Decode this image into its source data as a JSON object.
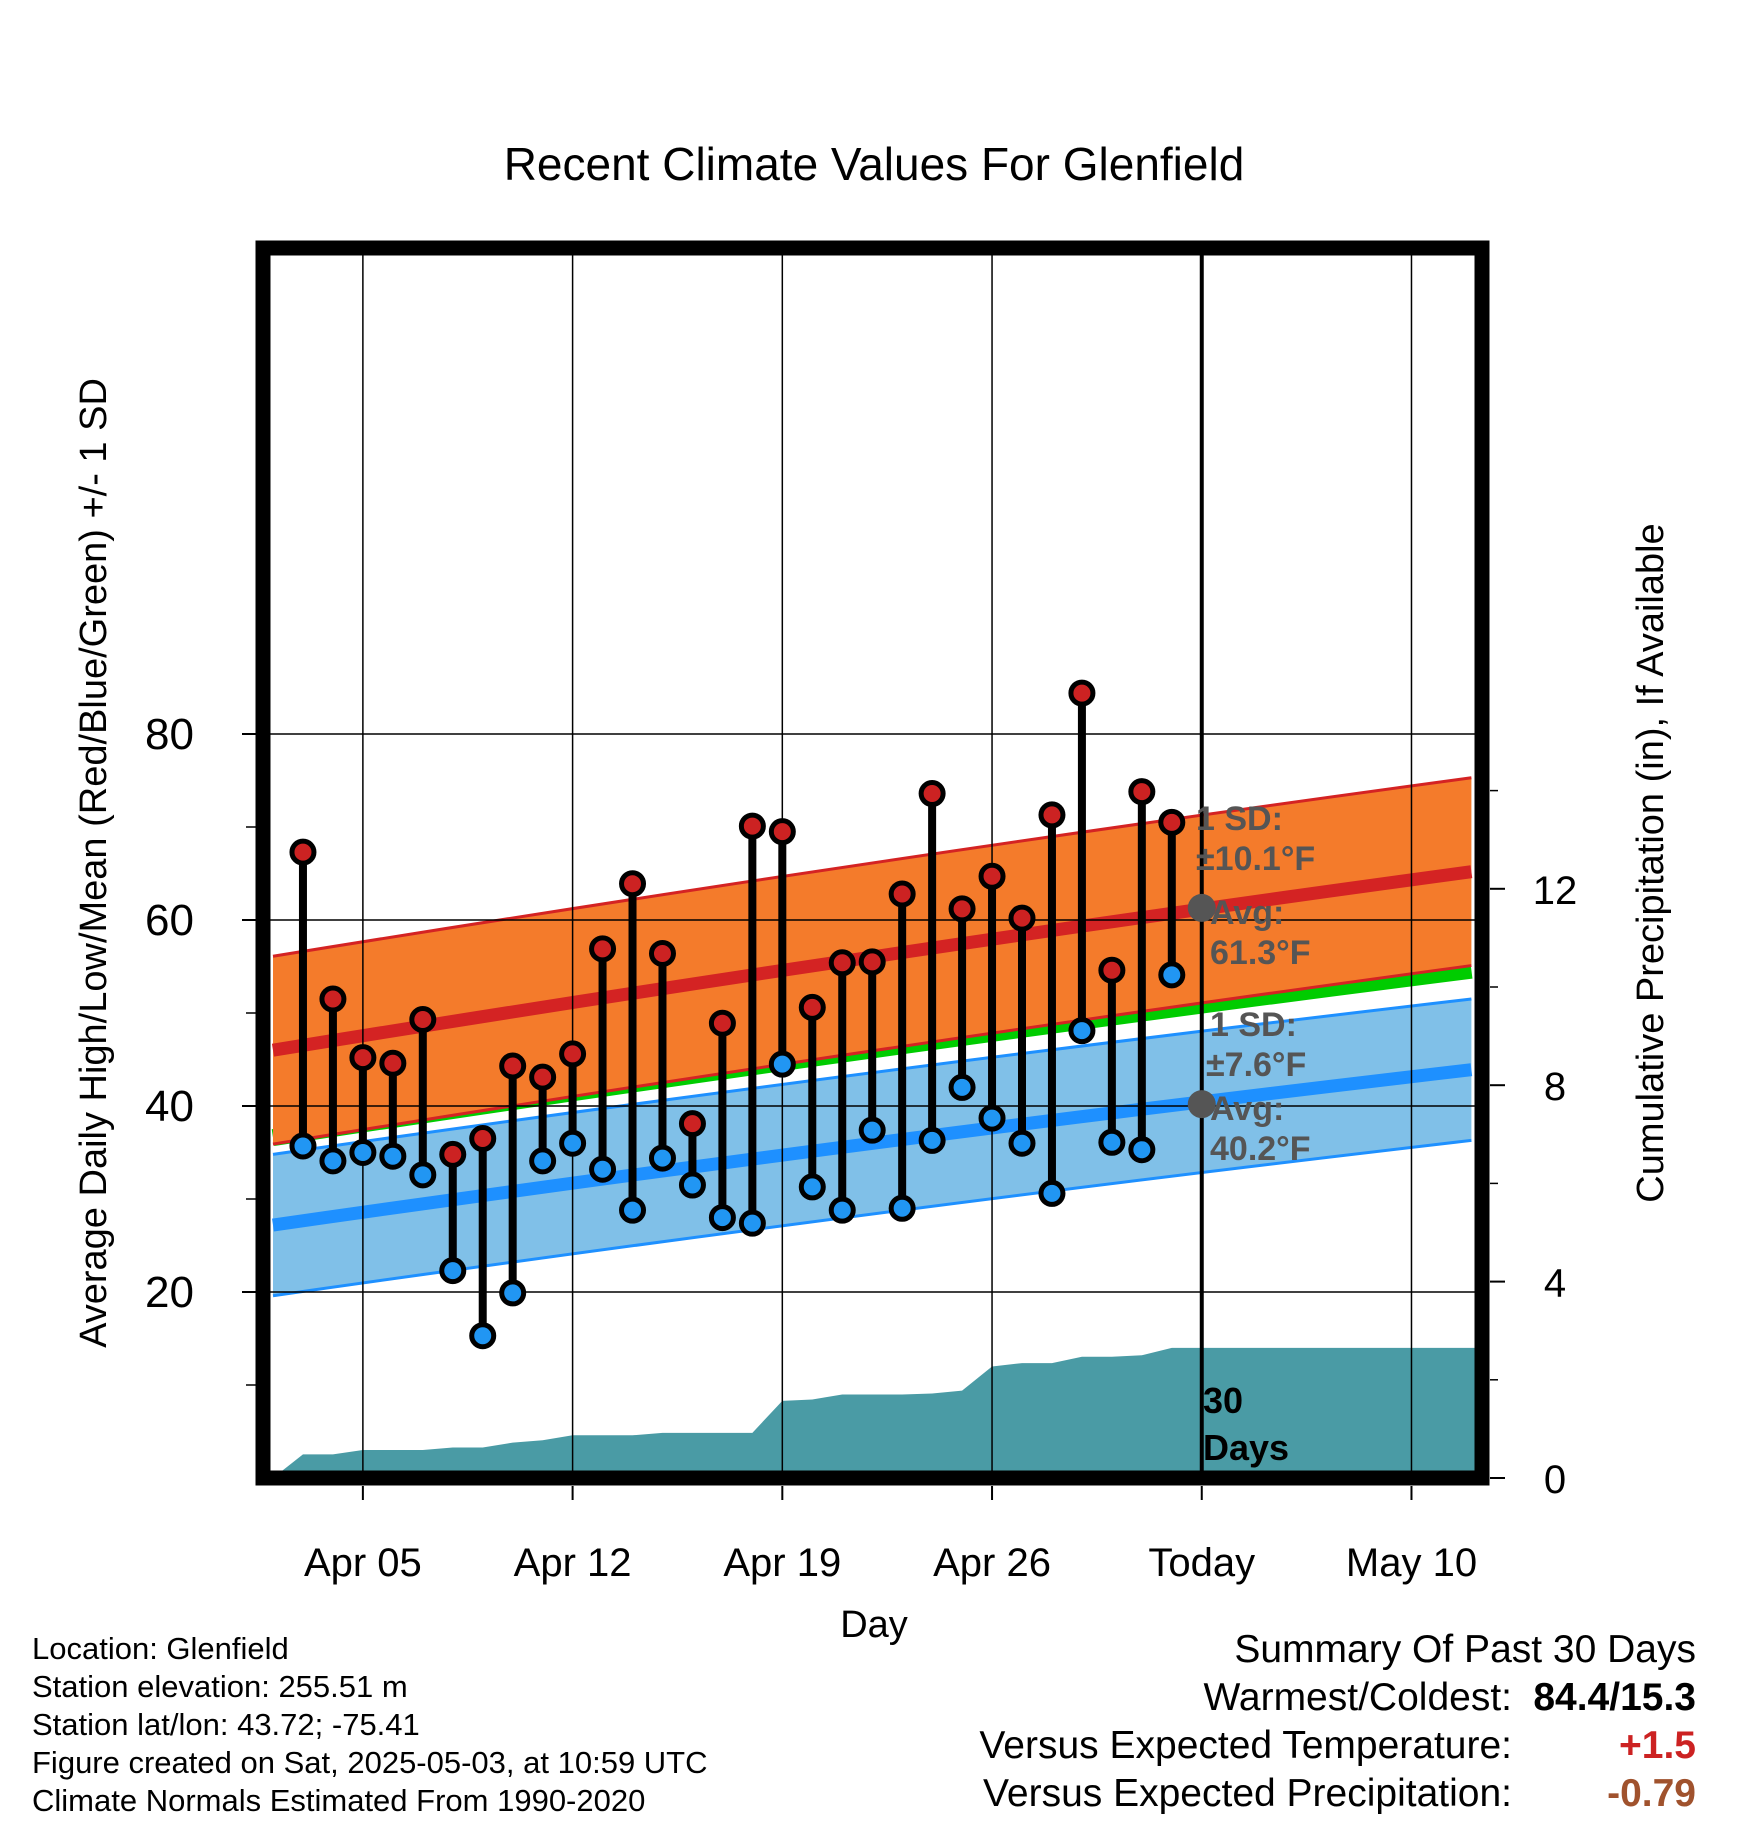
{
  "chart_data": {
    "type": "line",
    "title": "Recent Climate Values For Glenfield",
    "xlabel": "Day",
    "ylabel": "Average Daily High/Low/Mean (Red/Blue/Green) +/- 1 SD",
    "y2label": "Cumulative Precipitation (in), If Available",
    "ylim": [
      5,
      90
    ],
    "y2lim": [
      0,
      22
    ],
    "y_ticks": [
      "20",
      "40",
      "60",
      "80"
    ],
    "y2_ticks": [
      "0",
      "4",
      "8",
      "12"
    ],
    "x_ticks": [
      "Apr 05",
      "Apr 12",
      "Apr 19",
      "Apr 26",
      "Today",
      "May 10"
    ],
    "grid": true,
    "today_label": "30\nDays",
    "daily": {
      "days": [
        "Apr 03",
        "Apr 04",
        "Apr 05",
        "Apr 06",
        "Apr 07",
        "Apr 08",
        "Apr 09",
        "Apr 10",
        "Apr 11",
        "Apr 12",
        "Apr 13",
        "Apr 14",
        "Apr 15",
        "Apr 16",
        "Apr 17",
        "Apr 18",
        "Apr 19",
        "Apr 20",
        "Apr 21",
        "Apr 22",
        "Apr 23",
        "Apr 24",
        "Apr 25",
        "Apr 26",
        "Apr 27",
        "Apr 28",
        "Apr 29",
        "Apr 30",
        "May 01",
        "May 02"
      ],
      "high": [
        67.3,
        51.5,
        45.2,
        44.6,
        49.3,
        34.8,
        36.5,
        44.3,
        43.1,
        45.6,
        56.9,
        63.9,
        56.4,
        38.1,
        48.9,
        70.1,
        69.5,
        50.6,
        55.4,
        55.5,
        62.8,
        73.6,
        61.2,
        64.7,
        60.2,
        71.3,
        84.4,
        54.6,
        73.8,
        70.5
      ],
      "low": [
        35.7,
        34.1,
        35.0,
        34.6,
        32.6,
        22.3,
        15.3,
        19.9,
        34.1,
        36.0,
        33.2,
        28.8,
        34.4,
        31.5,
        28.0,
        27.4,
        44.5,
        31.3,
        28.8,
        37.4,
        29.0,
        36.3,
        42.0,
        38.7,
        36.0,
        30.6,
        48.1,
        36.1,
        35.3,
        54.1
      ]
    },
    "normals": {
      "days": [
        "Apr 02",
        "May 12"
      ],
      "mean_high": [
        46.0,
        65.2
      ],
      "high_sd": 10.1,
      "mean_low": [
        27.2,
        43.9
      ],
      "low_sd": 7.6,
      "mean": [
        36.6,
        54.6
      ]
    },
    "precip_cumulative": {
      "days": [
        "Apr 02",
        "Apr 03",
        "Apr 04",
        "Apr 05",
        "Apr 06",
        "Apr 07",
        "Apr 08",
        "Apr 09",
        "Apr 10",
        "Apr 11",
        "Apr 12",
        "Apr 13",
        "Apr 14",
        "Apr 15",
        "Apr 16",
        "Apr 17",
        "Apr 18",
        "Apr 19",
        "Apr 20",
        "Apr 21",
        "Apr 22",
        "Apr 23",
        "Apr 24",
        "Apr 25",
        "Apr 26",
        "Apr 27",
        "Apr 28",
        "Apr 29",
        "Apr 30",
        "May 01",
        "May 02",
        "May 03"
      ],
      "values": [
        0.0,
        0.48,
        0.48,
        0.57,
        0.57,
        0.57,
        0.62,
        0.62,
        0.72,
        0.77,
        0.87,
        0.87,
        0.87,
        0.92,
        0.92,
        0.92,
        0.92,
        1.57,
        1.6,
        1.7,
        1.7,
        1.7,
        1.72,
        1.78,
        2.27,
        2.34,
        2.34,
        2.47,
        2.47,
        2.5,
        2.65,
        2.65
      ]
    },
    "today_annotations": {
      "high": {
        "sd_label": "1 SD:",
        "sd_value": "±10.1°F",
        "avg_label": "Avg:",
        "avg_value": "61.3°F",
        "avg": 61.3
      },
      "low": {
        "sd_label": "1 SD:",
        "sd_value": "±7.6°F",
        "avg_label": "Avg:",
        "avg_value": "40.2°F",
        "avg": 40.2
      }
    },
    "colors": {
      "high_band": "#f47b2b",
      "high_line": "#d42323",
      "low_band": "#80c0e8",
      "low_line": "#1e90ff",
      "mean_line": "#00cc00",
      "precip": "#4a9ba5",
      "high_dot": "#cc2222",
      "low_dot": "#2196f3",
      "annotation": "#555555"
    }
  },
  "info": {
    "location": "Location: Glenfield",
    "elevation": "Station elevation: 255.51 m",
    "latlon": "Station lat/lon: 43.72; -75.41",
    "created": "Figure created on Sat, 2025-05-03, at 10:59 UTC",
    "normals": "Climate Normals Estimated From 1990-2020"
  },
  "summary": {
    "title": "Summary Of Past 30 Days",
    "warm_cold_label": "Warmest/Coldest:",
    "warm_cold_value": "84.4/15.3",
    "temp_label": "Versus Expected Temperature:",
    "temp_value": "+1.5",
    "precip_label": "Versus Expected Precipitation:",
    "precip_value": "-0.79"
  }
}
